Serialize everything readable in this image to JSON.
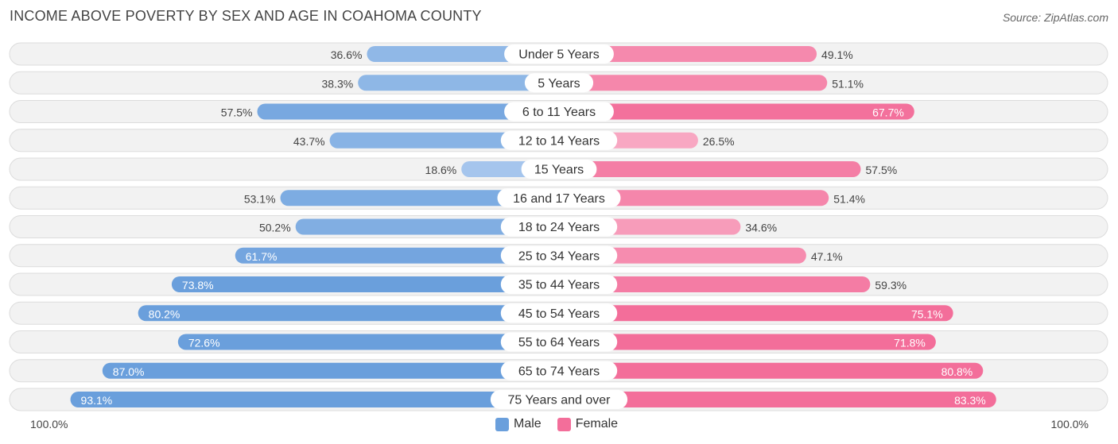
{
  "header": {
    "title": "INCOME ABOVE POVERTY BY SEX AND AGE IN COAHOMA COUNTY",
    "source": "Source: ZipAtlas.com"
  },
  "axis": {
    "left_label": "100.0%",
    "right_label": "100.0%"
  },
  "legend": {
    "male_label": "Male",
    "female_label": "Female"
  },
  "colors": {
    "male_dark": "#6a9fdc",
    "male_light": "#a9c8ee",
    "female_dark": "#f36e9a",
    "female_light": "#f8a9c3"
  },
  "chart_data": {
    "type": "bar",
    "orientation": "horizontal-diverging",
    "title": "INCOME ABOVE POVERTY BY SEX AND AGE IN COAHOMA COUNTY",
    "xlim": [
      -100,
      100
    ],
    "categories": [
      "Under 5 Years",
      "5 Years",
      "6 to 11 Years",
      "12 to 14 Years",
      "15 Years",
      "16 and 17 Years",
      "18 to 24 Years",
      "25 to 34 Years",
      "35 to 44 Years",
      "45 to 54 Years",
      "55 to 64 Years",
      "65 to 74 Years",
      "75 Years and over"
    ],
    "series": [
      {
        "name": "Male",
        "values": [
          36.6,
          38.3,
          57.5,
          43.7,
          18.6,
          53.1,
          50.2,
          61.7,
          73.8,
          80.2,
          72.6,
          87.0,
          93.1
        ],
        "labels": [
          "36.6%",
          "38.3%",
          "57.5%",
          "43.7%",
          "18.6%",
          "53.1%",
          "50.2%",
          "61.7%",
          "73.8%",
          "80.2%",
          "72.6%",
          "87.0%",
          "93.1%"
        ]
      },
      {
        "name": "Female",
        "values": [
          49.1,
          51.1,
          67.7,
          26.5,
          57.5,
          51.4,
          34.6,
          47.1,
          59.3,
          75.1,
          71.8,
          80.8,
          83.3
        ],
        "labels": [
          "49.1%",
          "51.1%",
          "67.7%",
          "26.5%",
          "57.5%",
          "51.4%",
          "34.6%",
          "47.1%",
          "59.3%",
          "75.1%",
          "71.8%",
          "80.8%",
          "83.3%"
        ]
      }
    ]
  }
}
